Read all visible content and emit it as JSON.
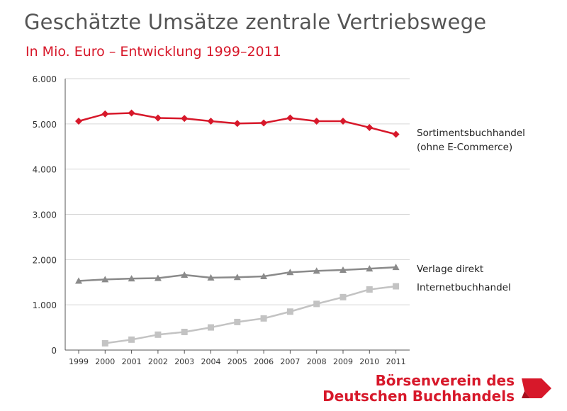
{
  "header": {
    "title": "Geschätzte Umsätze zentrale Vertriebswege",
    "subtitle": "In Mio. Euro – Entwicklung 1999–2011"
  },
  "chart_data": {
    "type": "line",
    "title": "Geschätzte Umsätze zentrale Vertriebswege",
    "subtitle": "In Mio. Euro – Entwicklung 1999–2011",
    "xlabel": "",
    "ylabel": "",
    "x": [
      "1999",
      "2000",
      "2001",
      "2002",
      "2003",
      "2004",
      "2005",
      "2006",
      "2007",
      "2008",
      "2009",
      "2010",
      "2011"
    ],
    "ylim": [
      0,
      6000
    ],
    "yticks": [
      0,
      1000,
      2000,
      3000,
      4000,
      5000,
      6000
    ],
    "ytick_labels": [
      "0",
      "1.000",
      "2.000",
      "3.000",
      "4.000",
      "5.000",
      "6.000"
    ],
    "grid": true,
    "series": [
      {
        "name": "Sortimentsbuchhandel",
        "label_lines": [
          "Sortimentsbuchhandel",
          "(ohne E-Commerce)"
        ],
        "color": "#d7182a",
        "marker": "diamond",
        "values": [
          5060,
          5220,
          5240,
          5130,
          5120,
          5060,
          5010,
          5020,
          5130,
          5060,
          5060,
          4920,
          4770
        ]
      },
      {
        "name": "Verlage direkt",
        "label_lines": [
          "Verlage direkt"
        ],
        "color": "#8a8a8a",
        "marker": "triangle",
        "values": [
          1530,
          1560,
          1580,
          1590,
          1660,
          1600,
          1610,
          1630,
          1720,
          1750,
          1770,
          1800,
          1830
        ]
      },
      {
        "name": "Internetbuchhandel",
        "label_lines": [
          "Internetbuchhandel"
        ],
        "color": "#c3c3c3",
        "marker": "square",
        "values": [
          null,
          150,
          230,
          340,
          400,
          500,
          620,
          700,
          850,
          1020,
          1170,
          1340,
          1410
        ]
      }
    ]
  },
  "logo": {
    "line1": "Börsenverein des",
    "line2": "Deutschen Buchhandels",
    "color": "#d7182a"
  }
}
